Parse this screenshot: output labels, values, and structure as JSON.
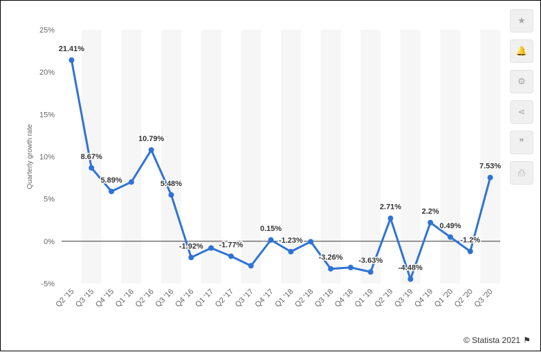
{
  "chart_data": {
    "type": "line",
    "categories": [
      "Q2 '15",
      "Q3 '15",
      "Q4 '15",
      "Q1 '16",
      "Q2 '16",
      "Q3 '16",
      "Q4 '16",
      "Q1 '17",
      "Q2 '17",
      "Q3 '17",
      "Q4 '17",
      "Q1 '18",
      "Q2 '18",
      "Q3 '18",
      "Q4 '18",
      "Q1 '19",
      "Q2 '19",
      "Q3 '19",
      "Q4 '19",
      "Q1 '20",
      "Q2 '20",
      "Q3 '20"
    ],
    "series": [
      {
        "values": [
          21.41,
          8.67,
          5.89,
          7.0,
          10.79,
          5.48,
          -1.92,
          -0.8,
          -1.77,
          -2.9,
          0.15,
          -1.23,
          -0.05,
          -3.26,
          -3.1,
          -3.63,
          2.71,
          -4.48,
          2.2,
          0.49,
          -1.2,
          7.53
        ],
        "labels": [
          "21.41%",
          "8.67%",
          "5.89%",
          "",
          "10.79%",
          "5.48%",
          "-1.92%",
          "",
          "-1.77%",
          "",
          "0.15%",
          "-1.23%",
          "",
          "-3.26%",
          "",
          "-3.63%",
          "2.71%",
          "-4.48%",
          "2.2%",
          "0.49%",
          "-1.2%",
          "7.53%"
        ]
      }
    ],
    "ylabel": "Quarterly growth rate",
    "ylim": [
      -5,
      25
    ],
    "yticks": [
      25,
      20,
      15,
      10,
      5,
      0,
      -5
    ],
    "ytick_labels": [
      "25%",
      "20%",
      "15%",
      "10%",
      "5%",
      "0%",
      "-5%"
    ],
    "grid": "alternating column bands",
    "line_color": "#2f73d4",
    "band_color": "#f6f6f6"
  },
  "toolbar": {
    "buttons": [
      {
        "icon": "star-icon",
        "glyph": "★"
      },
      {
        "icon": "bell-icon",
        "glyph": "🔔"
      },
      {
        "icon": "gear-icon",
        "glyph": "⚙"
      },
      {
        "icon": "share-icon",
        "glyph": "⋖"
      },
      {
        "icon": "quote-icon",
        "glyph": "❞"
      },
      {
        "icon": "print-icon",
        "glyph": "⎙"
      }
    ]
  },
  "credit": {
    "text": "© Statista 2021",
    "flag_glyph": "⚑"
  }
}
